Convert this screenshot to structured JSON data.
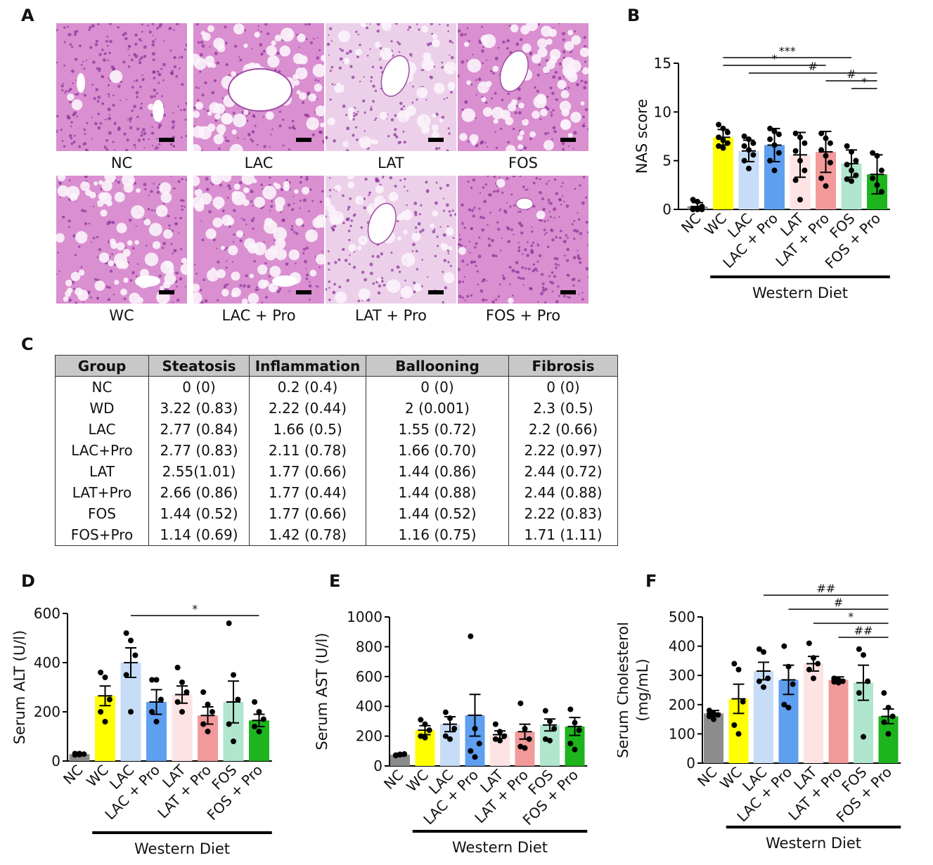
{
  "panels": {
    "A": "A",
    "B": "B",
    "C": "C",
    "D": "D",
    "E": "E",
    "F": "F"
  },
  "histology": {
    "images": [
      {
        "label": "NC",
        "tone": "dense"
      },
      {
        "label": "LAC",
        "tone": "fatty"
      },
      {
        "label": "LAT",
        "tone": "pale"
      },
      {
        "label": "FOS",
        "tone": "fatty-dense"
      },
      {
        "label": "WC",
        "tone": "fatty"
      },
      {
        "label": "LAC + Pro",
        "tone": "fatty-dense"
      },
      {
        "label": "LAT + Pro",
        "tone": "pale"
      },
      {
        "label": "FOS + Pro",
        "tone": "dense"
      }
    ],
    "colors": {
      "tissue": "#d98fd0",
      "nuclei": "#8a2f98",
      "fat": "#fbf3fb",
      "scale_bar": "#000000"
    }
  },
  "table": {
    "headers": [
      "Group",
      "Steatosis",
      "Inflammation",
      "Ballooning",
      "Fibrosis"
    ],
    "rows": [
      [
        "NC",
        "0 (0)",
        "0.2 (0.4)",
        "0 (0)",
        "0 (0)"
      ],
      [
        "WD",
        "3.22 (0.83)",
        "2.22 (0.44)",
        "2 (0.001)",
        "2.3 (0.5)"
      ],
      [
        "LAC",
        "2.77 (0.84)",
        "1.66 (0.5)",
        "1.55 (0.72)",
        "2.2 (0.66)"
      ],
      [
        "LAC+Pro",
        "2.77 (0.83)",
        "2.11 (0.78)",
        "1.66 (0.70)",
        "2.22 (0.97)"
      ],
      [
        "LAT",
        "2.55(1.01)",
        "1.77 (0.66)",
        "1.44 (0.86)",
        "2.44 (0.72)"
      ],
      [
        "LAT+Pro",
        "2.66 (0.86)",
        "1.77 (0.44)",
        "1.44 (0.88)",
        "2.44 (0.88)"
      ],
      [
        "FOS",
        "1.44 (0.52)",
        "1.77 (0.66)",
        "1.44 (0.52)",
        "2.22 (0.83)"
      ],
      [
        "FOS+Pro",
        "1.14 (0.69)",
        "1.42 (0.78)",
        "1.16 (0.75)",
        "1.71 (1.11)"
      ]
    ]
  },
  "colors": {
    "NC": "#8c8c8c",
    "WC": "#ffff00",
    "LAC": "#c6dcf7",
    "LAC + Pro": "#5f9ff0",
    "LAT": "#fde3e3",
    "LAT + Pro": "#f29a9a",
    "FOS": "#b0e6cd",
    "FOS + Pro": "#1db41d"
  },
  "chart_data": [
    {
      "id": "B",
      "type": "bar",
      "categories": [
        "NC",
        "WC",
        "LAC",
        "LAC + Pro",
        "LAT",
        "LAT + Pro",
        "FOS",
        "FOS + Pro"
      ],
      "values": [
        0.3,
        7.4,
        6.0,
        6.6,
        5.6,
        5.9,
        4.7,
        3.6
      ],
      "errors": [
        0.4,
        0.8,
        1.1,
        1.7,
        2.3,
        2.1,
        1.4,
        2.0
      ],
      "points": [
        [
          1,
          0.8,
          0.3,
          0,
          0,
          0,
          0,
          0
        ],
        [
          8.7,
          8.3,
          7.9,
          7.4,
          7.1,
          6.8,
          6.5,
          6.3
        ],
        [
          7.5,
          7.2,
          6.8,
          6.5,
          6.1,
          5.6,
          5.0,
          4.2
        ],
        [
          8.3,
          8.0,
          7.7,
          7.2,
          6.6,
          5.8,
          5.0,
          4.0
        ],
        [
          7.8,
          7.4,
          6.8,
          6.0,
          5.0,
          4.0,
          3.0,
          1.0
        ],
        [
          7.8,
          7.3,
          6.8,
          6.1,
          5.5,
          4.8,
          3.2,
          2.4
        ],
        [
          6.5,
          5.9,
          5.0,
          4.6,
          4.0,
          3.5,
          3.1,
          2.9
        ],
        [
          5.8,
          5.5,
          4.0,
          3.2,
          2.5,
          1.8
        ]
      ],
      "ylabel": "NAS  score",
      "ylim": [
        0,
        15
      ],
      "yticks": [
        0,
        5,
        10,
        15
      ],
      "group_label": "Western Diet",
      "group_from": 1,
      "group_to": 7,
      "significance": [
        {
          "from": 1,
          "to": 6,
          "label": "***"
        },
        {
          "from": 1,
          "to": 5,
          "label": "*"
        },
        {
          "from": 2,
          "to": 7,
          "label": "#"
        },
        {
          "from": 5,
          "to": 7,
          "label": "#"
        },
        {
          "from": 6,
          "to": 7,
          "label": "*"
        }
      ]
    },
    {
      "id": "D",
      "type": "bar",
      "categories": [
        "NC",
        "WC",
        "LAC",
        "LAC + Pro",
        "LAT",
        "LAT + Pro",
        "FOS",
        "FOS + Pro"
      ],
      "values": [
        28,
        265,
        400,
        240,
        270,
        185,
        240,
        165
      ],
      "errors": [
        5,
        40,
        60,
        50,
        35,
        35,
        85,
        25
      ],
      "points": [
        [
          25,
          30,
          28,
          30,
          26
        ],
        [
          360,
          340,
          250,
          200,
          160
        ],
        [
          520,
          490,
          430,
          350,
          200
        ],
        [
          330,
          330,
          250,
          200,
          160
        ],
        [
          380,
          320,
          280,
          240,
          200
        ],
        [
          280,
          230,
          200,
          150,
          120
        ],
        [
          560,
          350,
          250,
          150,
          80
        ],
        [
          240,
          200,
          170,
          140,
          120
        ]
      ],
      "ylabel": "Serum ALT (U/l)",
      "ylim": [
        0,
        600
      ],
      "yticks": [
        0,
        200,
        400,
        600
      ],
      "group_label": "Western Diet",
      "group_from": 1,
      "group_to": 7,
      "significance": [
        {
          "from": 2,
          "to": 7,
          "label": "*"
        }
      ]
    },
    {
      "id": "E",
      "type": "bar",
      "categories": [
        "NC",
        "WC",
        "LAC",
        "LAC + Pro",
        "LAT",
        "LAT + Pro",
        "FOS",
        "FOS + Pro"
      ],
      "values": [
        75,
        240,
        280,
        340,
        210,
        230,
        275,
        265
      ],
      "errors": [
        10,
        30,
        50,
        140,
        25,
        50,
        40,
        60
      ],
      "points": [
        [
          70,
          75,
          80,
          72,
          78
        ],
        [
          310,
          280,
          240,
          200,
          190
        ],
        [
          360,
          320,
          250,
          200,
          180
        ],
        [
          870,
          250,
          150,
          100,
          60
        ],
        [
          280,
          230,
          200,
          180,
          170
        ],
        [
          420,
          250,
          180,
          130,
          120
        ],
        [
          370,
          300,
          250,
          180,
          170
        ],
        [
          380,
          290,
          240,
          150,
          110
        ]
      ],
      "ylabel": "Serum AST (U/l)",
      "ylim": [
        0,
        1000
      ],
      "yticks": [
        0,
        200,
        400,
        600,
        800,
        1000
      ],
      "group_label": "Western Diet",
      "group_from": 1,
      "group_to": 7,
      "significance": []
    },
    {
      "id": "F",
      "type": "bar",
      "categories": [
        "NC",
        "WC",
        "LAC",
        "LAC + Pro",
        "LAT",
        "LAT + Pro",
        "FOS",
        "FOS + Pro"
      ],
      "values": [
        170,
        220,
        315,
        285,
        340,
        285,
        275,
        160
      ],
      "errors": [
        10,
        50,
        30,
        50,
        25,
        10,
        60,
        25
      ],
      "points": [
        [
          180,
          170,
          165,
          160,
          150
        ],
        [
          340,
          320,
          210,
          130,
          100
        ],
        [
          390,
          380,
          290,
          280,
          260
        ],
        [
          400,
          330,
          270,
          200,
          190
        ],
        [
          410,
          360,
          340,
          320,
          290
        ],
        [
          290,
          285,
          280,
          278,
          275
        ],
        [
          390,
          370,
          280,
          240,
          90
        ],
        [
          240,
          190,
          160,
          140,
          100
        ]
      ],
      "ylabel": "Serum Cholesterol",
      "ylabel2": "(mg/mL)",
      "ylim": [
        0,
        500
      ],
      "yticks": [
        0,
        100,
        200,
        300,
        400,
        500
      ],
      "group_label": "Western Diet",
      "group_from": 1,
      "group_to": 7,
      "significance": [
        {
          "from": 2,
          "to": 7,
          "label": "##"
        },
        {
          "from": 3,
          "to": 7,
          "label": "#"
        },
        {
          "from": 4,
          "to": 7,
          "label": "*"
        },
        {
          "from": 5,
          "to": 7,
          "label": "##"
        }
      ]
    }
  ]
}
